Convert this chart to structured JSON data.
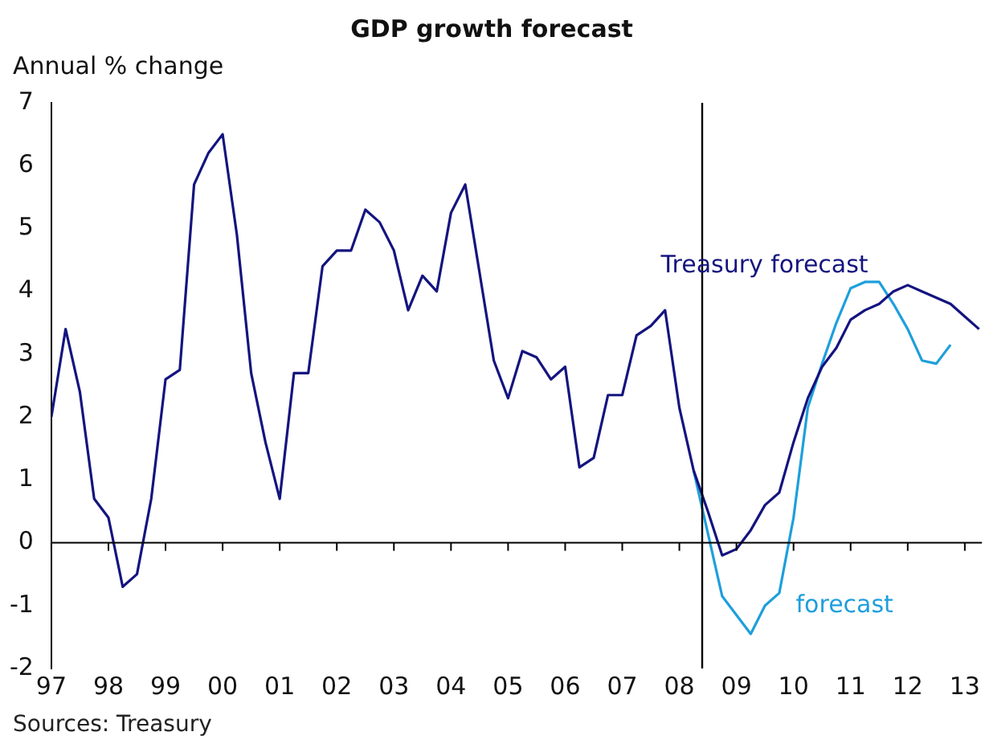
{
  "chart_data": {
    "type": "line",
    "title": "GDP growth forecast",
    "ylabel": "Annual % change",
    "xlim": [
      1997,
      2013.3
    ],
    "xticks": [
      {
        "value": 1997,
        "label": "97"
      },
      {
        "value": 1998,
        "label": "98"
      },
      {
        "value": 1999,
        "label": "99"
      },
      {
        "value": 2000,
        "label": "00"
      },
      {
        "value": 2001,
        "label": "01"
      },
      {
        "value": 2002,
        "label": "02"
      },
      {
        "value": 2003,
        "label": "03"
      },
      {
        "value": 2004,
        "label": "04"
      },
      {
        "value": 2005,
        "label": "05"
      },
      {
        "value": 2006,
        "label": "06"
      },
      {
        "value": 2007,
        "label": "07"
      },
      {
        "value": 2008,
        "label": "08"
      },
      {
        "value": 2009,
        "label": "09"
      },
      {
        "value": 2010,
        "label": "10"
      },
      {
        "value": 2011,
        "label": "11"
      },
      {
        "value": 2012,
        "label": "12"
      },
      {
        "value": 2013,
        "label": "13"
      }
    ],
    "ylim": [
      -2,
      7
    ],
    "yticks": [
      -2,
      -1,
      0,
      1,
      2,
      3,
      4,
      5,
      6,
      7
    ],
    "series": [
      {
        "name": "Treasury forecast",
        "color": "#14147f",
        "x": [
          1997,
          1997.25,
          1997.5,
          1997.75,
          1998,
          1998.25,
          1998.5,
          1998.75,
          1999,
          1999.25,
          1999.5,
          1999.75,
          2000,
          2000.25,
          2000.5,
          2000.75,
          2001,
          2001.25,
          2001.5,
          2001.75,
          2002,
          2002.25,
          2002.5,
          2002.75,
          2003,
          2003.25,
          2003.5,
          2003.75,
          2004,
          2004.25,
          2004.5,
          2004.75,
          2005,
          2005.25,
          2005.5,
          2005.75,
          2006,
          2006.25,
          2006.5,
          2006.75,
          2007,
          2007.25,
          2007.5,
          2007.75,
          2008,
          2008.25,
          2008.5,
          2008.75,
          2009,
          2009.25,
          2009.5,
          2009.75,
          2010,
          2010.25,
          2010.5,
          2010.75,
          2011,
          2011.25,
          2011.5,
          2011.75,
          2012,
          2012.25,
          2012.5,
          2012.75,
          2013,
          2013.25
        ],
        "values": [
          2.0,
          3.4,
          2.4,
          0.7,
          0.4,
          -0.7,
          -0.5,
          0.7,
          2.6,
          2.75,
          5.7,
          6.2,
          6.5,
          4.9,
          2.7,
          1.6,
          0.7,
          2.7,
          2.7,
          4.4,
          4.65,
          4.65,
          5.3,
          5.1,
          4.65,
          3.7,
          4.25,
          4.0,
          5.25,
          5.7,
          4.3,
          2.9,
          2.3,
          3.05,
          2.95,
          2.6,
          2.8,
          1.2,
          1.35,
          2.35,
          2.35,
          3.3,
          3.45,
          3.7,
          2.15,
          1.15,
          0.5,
          -0.2,
          -0.1,
          0.2,
          0.6,
          0.8,
          1.6,
          2.3,
          2.8,
          3.1,
          3.55,
          3.7,
          3.8,
          4.0,
          4.1,
          4.0,
          3.9,
          3.8,
          3.6,
          3.4
        ]
      },
      {
        "name": "forecast",
        "color": "#1e9fdc",
        "x": [
          2008.25,
          2008.5,
          2008.75,
          2009,
          2009.25,
          2009.5,
          2009.75,
          2010,
          2010.25,
          2010.5,
          2010.75,
          2011,
          2011.25,
          2011.5,
          2011.75,
          2012,
          2012.25,
          2012.5,
          2012.75
        ],
        "values": [
          1.15,
          0.15,
          -0.85,
          -1.15,
          -1.45,
          -1.0,
          -0.8,
          0.4,
          2.15,
          2.85,
          3.5,
          4.05,
          4.15,
          4.15,
          3.8,
          3.4,
          2.9,
          2.85,
          3.15
        ]
      }
    ],
    "ref_lines": [
      {
        "axis": "x",
        "value": 2008.4,
        "color": "#000000"
      }
    ],
    "annotations": [
      "Sources: Treasury"
    ]
  }
}
